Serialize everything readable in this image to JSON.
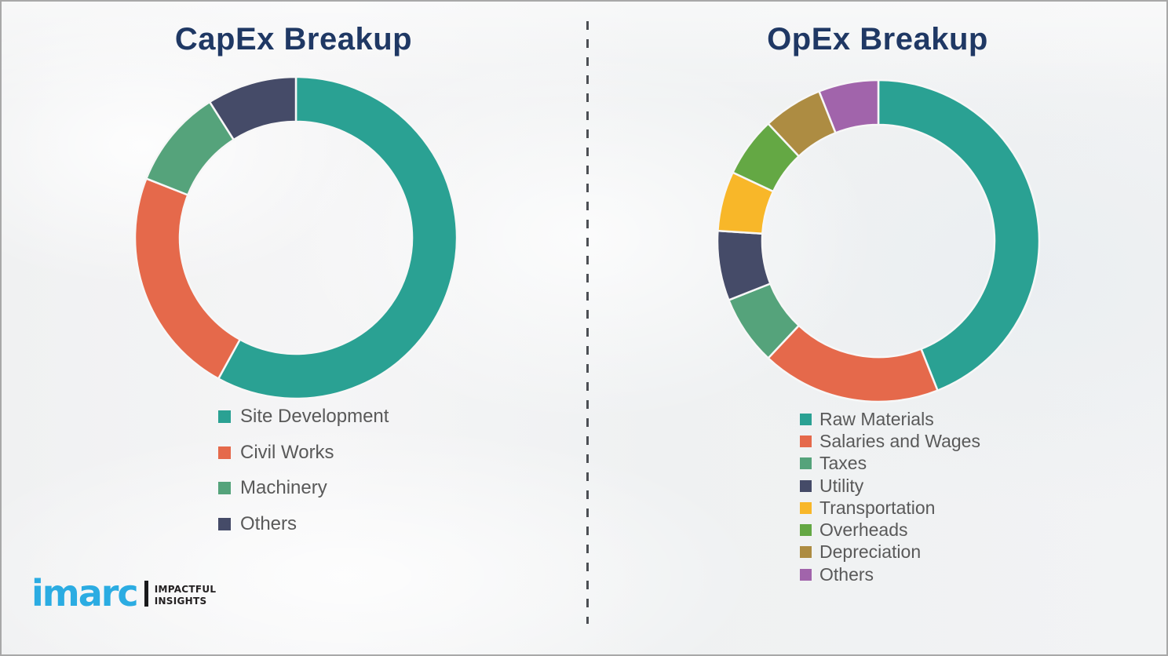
{
  "page": {
    "background_color": "#f2f3f4",
    "border_color": "#a8a8a8"
  },
  "divider": {
    "color": "#4c4f54",
    "style": "dashed-vertical"
  },
  "legend": {
    "text_color": "#595959"
  },
  "branding": {
    "logo_text": "imarc",
    "logo_color": "#2BACE2",
    "separator_color": "#1a1a1c",
    "tagline_color": "#232021",
    "tagline_line1": "IMPACTFUL",
    "tagline_line2": "INSIGHTS"
  },
  "chart_data": [
    {
      "type": "pie",
      "subtype": "donut",
      "title": "CapEx Breakup",
      "title_color": "#1F3864",
      "donut_hole_ratio": 0.72,
      "start_angle_deg": 0,
      "direction": "clockwise",
      "legend_position": "below-left",
      "categories": [
        "Site Development",
        "Civil Works",
        "Machinery",
        "Others"
      ],
      "values": [
        58,
        23,
        10,
        9
      ],
      "colors": [
        "#2AA193",
        "#E5694B",
        "#55A37B",
        "#454B68"
      ]
    },
    {
      "type": "pie",
      "subtype": "donut",
      "title": "OpEx Breakup",
      "title_color": "#1F3864",
      "donut_hole_ratio": 0.72,
      "start_angle_deg": 0,
      "direction": "clockwise",
      "legend_position": "below-left",
      "categories": [
        "Raw Materials",
        "Salaries and Wages",
        "Taxes",
        "Utility",
        "Transportation",
        "Overheads",
        "Depreciation",
        "Others"
      ],
      "values": [
        44,
        18,
        7,
        7,
        6,
        6,
        6,
        6
      ],
      "colors": [
        "#2AA193",
        "#E5694B",
        "#55A37B",
        "#454B68",
        "#F8B729",
        "#64A844",
        "#AD8C42",
        "#A164AB"
      ]
    }
  ]
}
